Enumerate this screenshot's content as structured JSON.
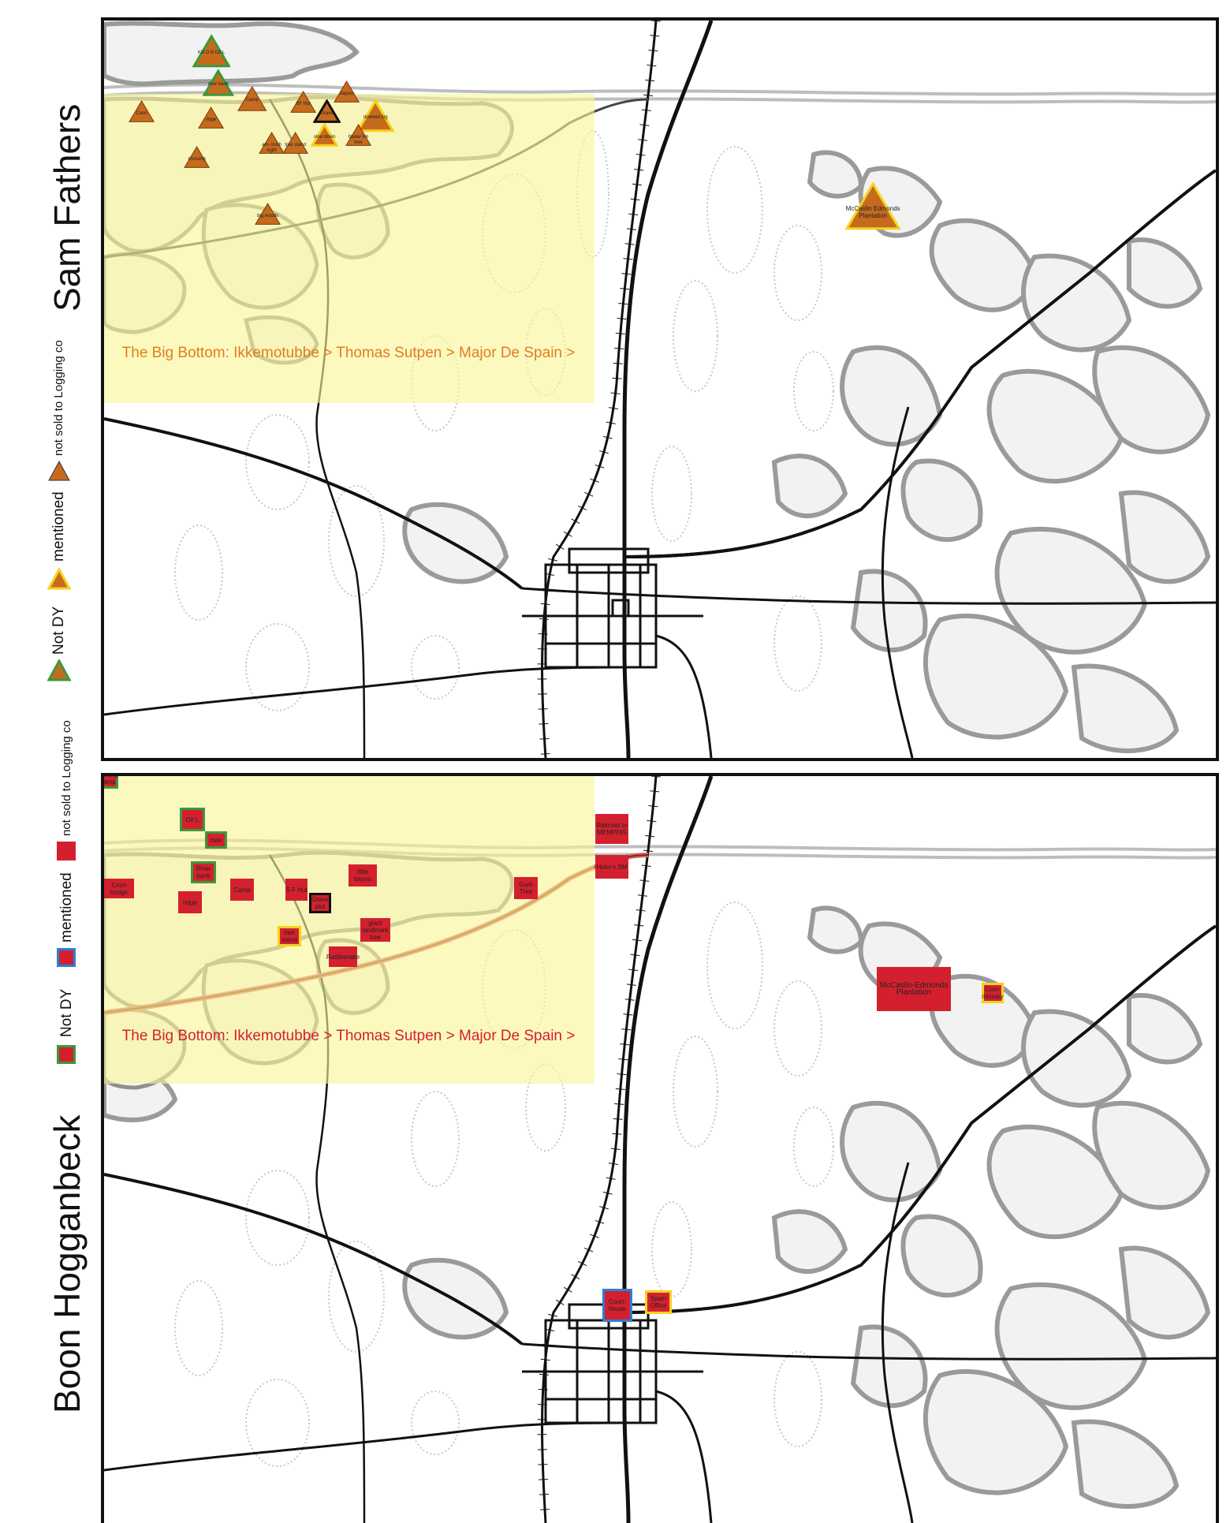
{
  "top_legend": {
    "title": "Sam Fathers",
    "not_dy": "Not DY",
    "mentioned": "mentioned",
    "not_sold": "not sold to Logging co"
  },
  "bottom_legend": {
    "title": "Boon Hogganbeck",
    "not_dy": "Not DY",
    "mentioned": "mentioned",
    "not_sold": "not sold to Logging co"
  },
  "top_map": {
    "zone_label": "The Big Bottom: Ikkemotubbe > Thomas Sutpen > Major De Spain >",
    "markers": [
      {
        "label": "Kill O B Oi/ L",
        "style": "not-dy"
      },
      {
        "label": "river bank",
        "style": "not-dy"
      },
      {
        "label": "Coon",
        "style": "plain"
      },
      {
        "label": "ridge",
        "style": "plain"
      },
      {
        "label": "Camp",
        "style": "plain"
      },
      {
        "label": "SF Hut",
        "style": "plain"
      },
      {
        "label": "Grave",
        "style": "dark"
      },
      {
        "label": "bayou",
        "style": "plain"
      },
      {
        "label": "downed log",
        "style": "mentioned"
      },
      {
        "label": "slow down",
        "style": "mentioned"
      },
      {
        "label": "blade/ lim tree",
        "style": "plain"
      },
      {
        "label": "am- bush sight",
        "style": "plain"
      },
      {
        "label": "tree stand",
        "style": "plain"
      },
      {
        "label": "crossing",
        "style": "plain"
      },
      {
        "label": "big woods",
        "style": "plain"
      },
      {
        "label": "McCaslin Edmonds Plantation",
        "style": "mentioned"
      }
    ]
  },
  "bottom_map": {
    "zone_label": "The Big Bottom: Ikkemotubbe > Thomas Sutpen > Major De Spain >",
    "markers": [
      {
        "label": "Hunting Camp",
        "style": "not-dy"
      },
      {
        "label": "Oi/ L",
        "style": "not-dy"
      },
      {
        "label": "river",
        "style": "not-dy"
      },
      {
        "label": "River bank",
        "style": "not-dy"
      },
      {
        "label": "Coon bridge",
        "style": "plain"
      },
      {
        "label": "ridge",
        "style": "plain"
      },
      {
        "label": "Camp",
        "style": "plain"
      },
      {
        "label": "S F Hut",
        "style": "plain"
      },
      {
        "label": "Grave plot",
        "style": "dark"
      },
      {
        "label": "little bayou",
        "style": "plain"
      },
      {
        "label": "Gum Tree",
        "style": "plain"
      },
      {
        "label": "tree stand",
        "style": "mentioned"
      },
      {
        "label": "giant landmark tree",
        "style": "plain"
      },
      {
        "label": "Rattlesnake",
        "style": "plain"
      },
      {
        "label": "Railroad to MEMPHIS",
        "style": "plain"
      },
      {
        "label": "Hoke's SM",
        "style": "plain"
      },
      {
        "label": "McCaslin-Edmonds Plantation",
        "style": "plain"
      },
      {
        "label": "Com- missary",
        "style": "mentioned"
      },
      {
        "label": "Court- house",
        "style": "courthouse"
      },
      {
        "label": "Spain Office",
        "style": "mentioned"
      }
    ]
  },
  "colors": {
    "triangle_fill": "#c66a1e",
    "square_fill": "#d4202e",
    "not_dy_border": "#3a9a3a",
    "mentioned_border": "#f5d21a",
    "courthouse_border": "#2e7fd6",
    "zone_fill": "#faf596",
    "top_zone_text": "#e07d22",
    "bottom_zone_text": "#d4202e"
  }
}
